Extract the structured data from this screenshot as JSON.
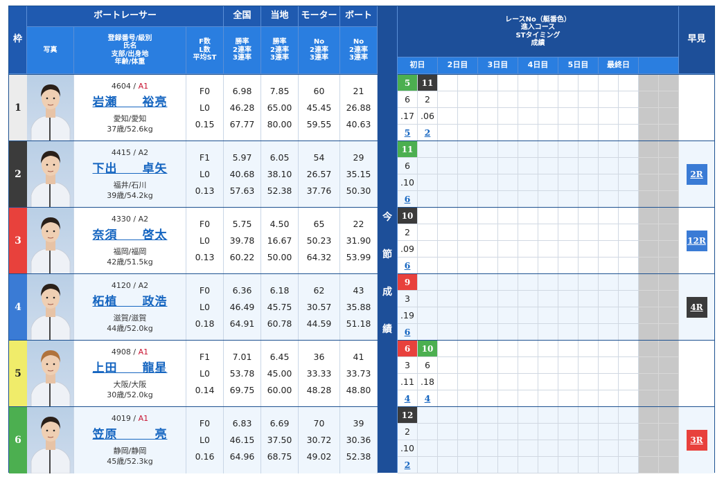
{
  "header": {
    "waku": "枠",
    "boatracer": "ボートレーサー",
    "photo": "写真",
    "info": [
      "登録番号/級別",
      "氏名",
      "支部/出身地",
      "年齢/体重"
    ],
    "fl": [
      "F数",
      "L数",
      "平均ST"
    ],
    "zenkoku": {
      "title": "全国",
      "sub": [
        "勝率",
        "2連率",
        "3連率"
      ]
    },
    "touchi": {
      "title": "当地",
      "sub": [
        "勝率",
        "2連率",
        "3連率"
      ]
    },
    "motor": {
      "title": "モーター",
      "sub": [
        "No",
        "2連率",
        "3連率"
      ]
    },
    "boat": {
      "title": "ボート",
      "sub": [
        "No",
        "2連率",
        "3連率"
      ]
    },
    "race_info": [
      "レースNo（艇番色）",
      "進入コース",
      "STタイミング",
      "成績"
    ],
    "days": [
      "初日",
      "2日目",
      "3日目",
      "4日目",
      "5日目",
      "最終日",
      ""
    ],
    "hayami": "早見"
  },
  "konsetsu_label": [
    "今",
    "節",
    "成",
    "績"
  ],
  "colors": {
    "waku": [
      "#ececec",
      "#3b3b3b",
      "#e8413c",
      "#3a7bd5",
      "#f0ec6a",
      "#4caf50"
    ],
    "waku_text": [
      "#222222",
      "#ffffff",
      "#ffffff",
      "#ffffff",
      "#222222",
      "#ffffff"
    ],
    "header_dark": "#1f5ab0",
    "header_light": "#2a7ee0",
    "link": "#1565c0",
    "class_a1": "#c8102e"
  },
  "racers": [
    {
      "waku": "1",
      "reg": "4604",
      "cls": "A1",
      "name": "岩瀬　　裕亮",
      "pref": "愛知/愛知",
      "age": "37歳/52.6kg",
      "f": "F0",
      "l": "L0",
      "st": "0.15",
      "zenkoku": [
        "6.98",
        "46.28",
        "67.77"
      ],
      "touchi": [
        "7.85",
        "65.00",
        "80.00"
      ],
      "motor": [
        "60",
        "45.45",
        "59.55"
      ],
      "boat": [
        "21",
        "26.88",
        "40.63"
      ],
      "races": [
        {
          "rno": "5",
          "color": 5,
          "course": "6",
          "st": ".17",
          "result": "5"
        },
        {
          "rno": "11",
          "color": 1,
          "course": "2",
          "st": ".06",
          "result": "2"
        }
      ],
      "hayami": null
    },
    {
      "waku": "2",
      "reg": "4415",
      "cls": "A2",
      "name": "下出　　卓矢",
      "pref": "福井/石川",
      "age": "39歳/54.2kg",
      "f": "F1",
      "l": "L0",
      "st": "0.13",
      "zenkoku": [
        "5.97",
        "40.68",
        "57.63"
      ],
      "touchi": [
        "6.05",
        "38.10",
        "52.38"
      ],
      "motor": [
        "54",
        "26.57",
        "37.76"
      ],
      "boat": [
        "29",
        "35.15",
        "50.30"
      ],
      "races": [
        {
          "rno": "11",
          "color": 5,
          "course": "6",
          "st": ".10",
          "result": "6"
        }
      ],
      "hayami": {
        "label": "2R",
        "color": 3
      }
    },
    {
      "waku": "3",
      "reg": "4330",
      "cls": "A2",
      "name": "奈須　　啓太",
      "pref": "福岡/福岡",
      "age": "42歳/51.5kg",
      "f": "F0",
      "l": "L0",
      "st": "0.13",
      "zenkoku": [
        "5.75",
        "39.78",
        "60.22"
      ],
      "touchi": [
        "4.50",
        "16.67",
        "50.00"
      ],
      "motor": [
        "65",
        "50.23",
        "64.32"
      ],
      "boat": [
        "22",
        "31.90",
        "53.99"
      ],
      "races": [
        {
          "rno": "10",
          "color": 1,
          "course": "2",
          "st": ".09",
          "result": "6"
        }
      ],
      "hayami": {
        "label": "12R",
        "color": 3
      }
    },
    {
      "waku": "4",
      "reg": "4120",
      "cls": "A2",
      "name": "柘植　　政浩",
      "pref": "滋賀/滋賀",
      "age": "44歳/52.0kg",
      "f": "F0",
      "l": "L0",
      "st": "0.18",
      "zenkoku": [
        "6.36",
        "46.49",
        "64.91"
      ],
      "touchi": [
        "6.18",
        "45.75",
        "60.78"
      ],
      "motor": [
        "62",
        "30.57",
        "44.59"
      ],
      "boat": [
        "43",
        "35.88",
        "51.18"
      ],
      "races": [
        {
          "rno": "9",
          "color": 2,
          "course": "3",
          "st": ".19",
          "result": "6"
        }
      ],
      "hayami": {
        "label": "4R",
        "color": 1
      }
    },
    {
      "waku": "5",
      "reg": "4908",
      "cls": "A1",
      "name": "上田　　龍星",
      "pref": "大阪/大阪",
      "age": "30歳/52.0kg",
      "f": "F1",
      "l": "L0",
      "st": "0.14",
      "zenkoku": [
        "7.01",
        "53.78",
        "69.75"
      ],
      "touchi": [
        "6.45",
        "45.00",
        "60.00"
      ],
      "motor": [
        "36",
        "33.33",
        "48.28"
      ],
      "boat": [
        "41",
        "33.73",
        "48.80"
      ],
      "races": [
        {
          "rno": "6",
          "color": 2,
          "course": "3",
          "st": ".11",
          "result": "4"
        },
        {
          "rno": "10",
          "color": 5,
          "course": "6",
          "st": ".18",
          "result": "4"
        }
      ],
      "hayami": null
    },
    {
      "waku": "6",
      "reg": "4019",
      "cls": "A1",
      "name": "笠原　　　亮",
      "pref": "静岡/静岡",
      "age": "45歳/52.3kg",
      "f": "F0",
      "l": "L0",
      "st": "0.16",
      "zenkoku": [
        "6.83",
        "46.15",
        "64.96"
      ],
      "touchi": [
        "6.69",
        "37.50",
        "68.75"
      ],
      "motor": [
        "70",
        "30.72",
        "49.02"
      ],
      "boat": [
        "39",
        "30.36",
        "52.38"
      ],
      "races": [
        {
          "rno": "12",
          "color": 1,
          "course": "2",
          "st": ".10",
          "result": "2"
        }
      ],
      "hayami": {
        "label": "3R",
        "color": 2
      }
    }
  ]
}
